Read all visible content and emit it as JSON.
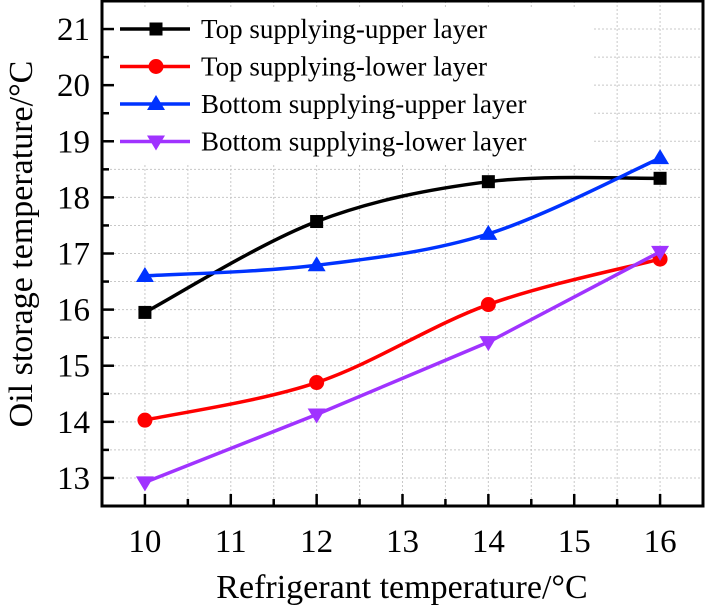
{
  "chart_data": {
    "type": "line",
    "title": "",
    "xlabel": "Refrigerant temperature/°C",
    "ylabel": "Oil storage temperature/°C",
    "x": [
      10,
      12,
      14,
      16
    ],
    "xlim": [
      9.5,
      16.5
    ],
    "ylim": [
      12.5,
      21.5
    ],
    "xticks": [
      "10",
      "11",
      "12",
      "13",
      "14",
      "15",
      "16"
    ],
    "yticks": [
      "13",
      "14",
      "15",
      "16",
      "17",
      "18",
      "19",
      "20",
      "21"
    ],
    "grid": true,
    "legend_position": "upper left",
    "series": [
      {
        "name": "Top supplying-upper layer",
        "color": "#000000",
        "marker": "square",
        "smooth": true,
        "values": [
          15.95,
          17.57,
          18.28,
          18.34
        ]
      },
      {
        "name": "Top supplying-lower layer",
        "color": "#ff0000",
        "marker": "circle",
        "smooth": true,
        "values": [
          14.03,
          14.7,
          16.09,
          16.9
        ]
      },
      {
        "name": "Bottom supplying-upper layer",
        "color": "#0033ff",
        "marker": "triangle-up",
        "smooth": true,
        "values": [
          16.6,
          16.79,
          17.35,
          18.7
        ]
      },
      {
        "name": "Bottom supplying-lower layer",
        "color": "#a033ff",
        "marker": "triangle-down",
        "smooth": false,
        "values": [
          12.92,
          14.13,
          15.42,
          17.03
        ]
      }
    ]
  }
}
